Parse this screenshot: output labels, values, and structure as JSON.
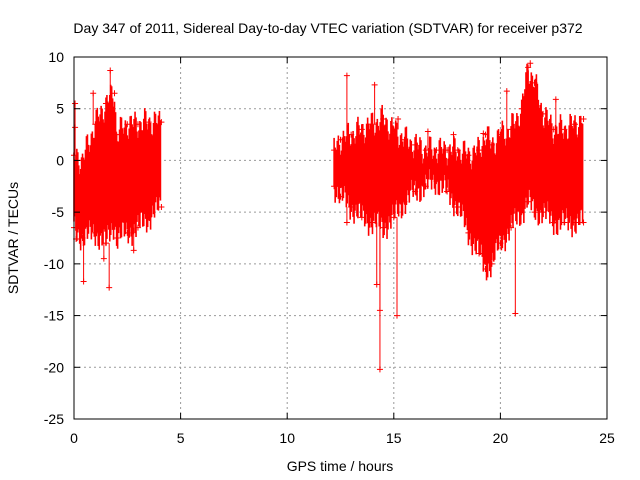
{
  "chart_data": {
    "type": "scatter",
    "title": "Day 347 of 2011, Sidereal Day-to-day VTEC variation (SDTVAR) for receiver p372",
    "xlabel": "GPS time / hours",
    "ylabel": "SDTVAR / TECUs",
    "xlim": [
      0,
      25
    ],
    "ylim": [
      -25,
      10
    ],
    "x_ticks": [
      0,
      5,
      10,
      15,
      20,
      25
    ],
    "x_tick_labels": [
      "0",
      "5",
      "10",
      "15",
      "20",
      "25"
    ],
    "y_ticks": [
      -25,
      -20,
      -15,
      -10,
      -5,
      0,
      5,
      10
    ],
    "y_tick_labels": [
      "-25",
      "-20",
      "-15",
      "-10",
      "-5",
      "0",
      "5",
      "10"
    ],
    "grid": true,
    "marker": "+",
    "color": "#ff0000",
    "series": [
      {
        "name": "p372",
        "envelope": [
          {
            "x": 0.0,
            "lo": -6.5,
            "hi": 0.5
          },
          {
            "x": 0.4,
            "lo": -7.5,
            "hi": 0.0
          },
          {
            "x": 1.0,
            "lo": -7.0,
            "hi": 3.5
          },
          {
            "x": 1.5,
            "lo": -8.0,
            "hi": 5.5
          },
          {
            "x": 1.9,
            "lo": -6.0,
            "hi": 6.5
          },
          {
            "x": 2.0,
            "lo": -7.5,
            "hi": 2.5
          },
          {
            "x": 2.5,
            "lo": -7.0,
            "hi": 3.5
          },
          {
            "x": 3.0,
            "lo": -6.5,
            "hi": 3.5
          },
          {
            "x": 3.5,
            "lo": -5.5,
            "hi": 3.7
          },
          {
            "x": 4.1,
            "lo": -4.5,
            "hi": 3.7
          },
          {
            "x": 12.2,
            "lo": -2.5,
            "hi": 1.0
          },
          {
            "x": 12.5,
            "lo": -3.5,
            "hi": 2.0
          },
          {
            "x": 13.0,
            "lo": -4.5,
            "hi": 2.5
          },
          {
            "x": 13.5,
            "lo": -5.5,
            "hi": 3.0
          },
          {
            "x": 14.0,
            "lo": -6.0,
            "hi": 3.5
          },
          {
            "x": 14.5,
            "lo": -6.5,
            "hi": 4.0
          },
          {
            "x": 15.0,
            "lo": -5.5,
            "hi": 3.0
          },
          {
            "x": 15.5,
            "lo": -4.0,
            "hi": 2.0
          },
          {
            "x": 16.0,
            "lo": -3.0,
            "hi": 1.5
          },
          {
            "x": 16.5,
            "lo": -2.5,
            "hi": 1.0
          },
          {
            "x": 17.0,
            "lo": -2.0,
            "hi": 1.0
          },
          {
            "x": 17.5,
            "lo": -3.0,
            "hi": 1.0
          },
          {
            "x": 18.0,
            "lo": -4.5,
            "hi": 1.0
          },
          {
            "x": 18.5,
            "lo": -7.0,
            "hi": 0.5
          },
          {
            "x": 19.0,
            "lo": -9.0,
            "hi": 1.0
          },
          {
            "x": 19.3,
            "lo": -10.5,
            "hi": 2.5
          },
          {
            "x": 19.6,
            "lo": -10.0,
            "hi": 1.5
          },
          {
            "x": 20.0,
            "lo": -8.0,
            "hi": 2.5
          },
          {
            "x": 20.5,
            "lo": -6.5,
            "hi": 3.0
          },
          {
            "x": 21.0,
            "lo": -5.0,
            "hi": 5.0
          },
          {
            "x": 21.3,
            "lo": -4.0,
            "hi": 9.0
          },
          {
            "x": 21.6,
            "lo": -5.0,
            "hi": 7.5
          },
          {
            "x": 22.0,
            "lo": -5.0,
            "hi": 4.5
          },
          {
            "x": 22.5,
            "lo": -6.0,
            "hi": 3.0
          },
          {
            "x": 23.0,
            "lo": -6.0,
            "hi": 3.0
          },
          {
            "x": 23.5,
            "lo": -6.0,
            "hi": 3.5
          },
          {
            "x": 23.9,
            "lo": -6.0,
            "hi": 4.0
          }
        ],
        "outliers": [
          {
            "x": 0.05,
            "y": 5.5
          },
          {
            "x": 0.05,
            "y": 3.2
          },
          {
            "x": 0.1,
            "y": -7.6
          },
          {
            "x": 0.9,
            "y": 6.5
          },
          {
            "x": 1.7,
            "y": 8.7
          },
          {
            "x": 1.65,
            "y": -12.3
          },
          {
            "x": 1.4,
            "y": -9.5
          },
          {
            "x": 0.45,
            "y": -11.7
          },
          {
            "x": 2.8,
            "y": -8.7
          },
          {
            "x": 12.8,
            "y": 8.2
          },
          {
            "x": 12.8,
            "y": -6.0
          },
          {
            "x": 14.1,
            "y": 7.3
          },
          {
            "x": 14.35,
            "y": -14.5
          },
          {
            "x": 14.2,
            "y": -12.0
          },
          {
            "x": 14.35,
            "y": -20.2
          },
          {
            "x": 15.15,
            "y": -15.0
          },
          {
            "x": 15.2,
            "y": 4.0
          },
          {
            "x": 16.6,
            "y": 2.8
          },
          {
            "x": 17.8,
            "y": 2.5
          },
          {
            "x": 19.2,
            "y": 2.6
          },
          {
            "x": 20.3,
            "y": 6.7
          },
          {
            "x": 20.7,
            "y": -14.8
          },
          {
            "x": 21.4,
            "y": 9.4
          },
          {
            "x": 22.6,
            "y": 5.9
          }
        ]
      }
    ]
  }
}
